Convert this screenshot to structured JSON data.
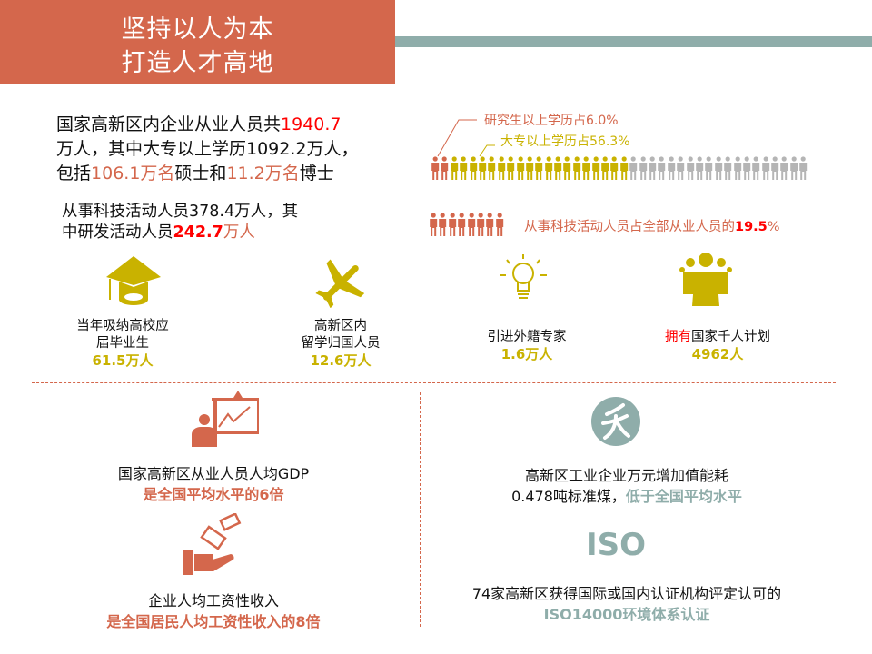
{
  "header": {
    "title_line1": "坚持以人为本",
    "title_line2": "打造人才高地"
  },
  "colors": {
    "primary": "#D4674C",
    "teal": "#8FADAA",
    "gold": "#C9B200",
    "gray": "#B5B5B5",
    "highlight": "#FF0000"
  },
  "employment": {
    "line1_prefix": "国家高新区内企业从业人员共",
    "total": "1940.7",
    "line2": "万人，其中大专以上学历1092.2万人，",
    "line3_prefix": "包括",
    "masters": "106.1万名",
    "mid": "硕士和",
    "phd": "11.2万名",
    "line3_suffix": "博士"
  },
  "research": {
    "line1": "从事科技活动人员378.4万人，其",
    "line2_prefix": "中研发活动人员",
    "rd": "242.7",
    "unit": "万人"
  },
  "education_chart": {
    "graduate_label": "研究生以上学历占6.0%",
    "college_label": "大专以上学历占56.3%",
    "graduate_share": 6.0,
    "college_share": 56.3,
    "icons": {
      "graduate": 2,
      "college": 19,
      "other": 19
    }
  },
  "sci_chart": {
    "icons": 8,
    "label_prefix": "从事科技活动人员占全部从业人员的",
    "value": "19.5",
    "suffix": "%"
  },
  "stats": [
    {
      "icon": "graduation-cap-icon",
      "label1": "当年吸纳高校应",
      "label2": "届毕业生",
      "value": "61.5万人"
    },
    {
      "icon": "airplane-icon",
      "label1": "高新区内",
      "label2": "留学归国人员",
      "value": "12.6万人"
    },
    {
      "icon": "lightbulb-icon",
      "label1": "引进外籍专家",
      "value": "1.6万人"
    },
    {
      "icon": "group-icon",
      "label_hl": "拥有",
      "label1": "国家千人计划",
      "value": "4962人"
    }
  ],
  "bottom": {
    "gdp": {
      "line1": "国家高新区从业人员人均GDP",
      "line2": "是全国平均水平的6倍"
    },
    "wage": {
      "line1": "企业人均工资性收入",
      "line2": "是全国居民人均工资性收入的8倍"
    },
    "energy": {
      "line1": "高新区工业企业万元增加值能耗",
      "line2_prefix": "0.478吨标准煤，",
      "line2_hl": "低于全国平均水平"
    },
    "iso": {
      "logo": "ISO",
      "line1": "74家高新区获得国际或国内认证机构评定认可的",
      "line2": "ISO14000环境体系认证"
    }
  }
}
